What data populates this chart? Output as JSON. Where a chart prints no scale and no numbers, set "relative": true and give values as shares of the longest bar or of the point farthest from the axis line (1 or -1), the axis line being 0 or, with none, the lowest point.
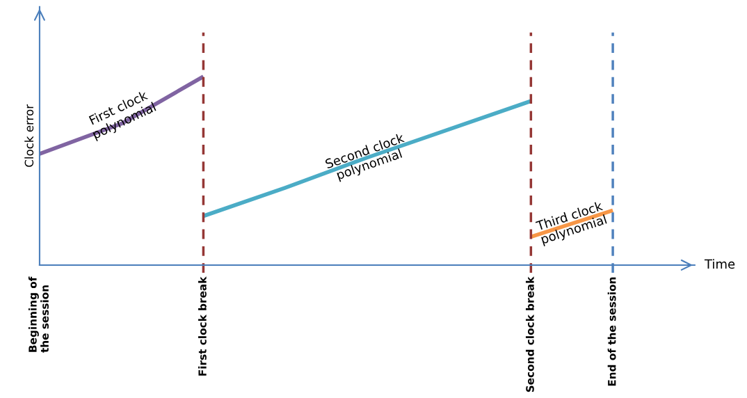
{
  "chart_data": {
    "type": "line",
    "relative": true,
    "ylabel": "Clock error",
    "xlabel": "Time",
    "categories": [
      "Beginning of the session",
      null,
      "First clock break",
      null,
      null,
      null,
      "Second clock break",
      "End of the session"
    ],
    "tick_labels": "x",
    "grid": false,
    "marker": "none",
    "line_style": "solid",
    "series": [
      {
        "color": "#8064a2",
        "values": [
          0.59,
          0.75,
          1,
          null,
          null,
          null,
          null,
          null
        ]
      },
      {
        "color": "#4bacc6",
        "values": [
          null,
          null,
          0.26,
          0.41,
          0.57,
          0.72,
          0.87,
          null
        ]
      },
      {
        "color": "#f79646",
        "values": [
          null,
          null,
          null,
          null,
          null,
          null,
          0.15,
          0.29
        ]
      }
    ],
    "ref_lines": [
      {
        "axis": "x",
        "value": "First clock break",
        "color": "#953735",
        "line_style": "dashed"
      },
      {
        "axis": "x",
        "value": "Second clock break",
        "color": "#953735",
        "line_style": "dashed"
      },
      {
        "axis": "x",
        "value": "End of the session",
        "color": "#4f81bd",
        "line_style": "dashed"
      }
    ],
    "annotations": [
      "First clock polynomial",
      "Second clock polynomial",
      "Third clock polynomial"
    ]
  }
}
